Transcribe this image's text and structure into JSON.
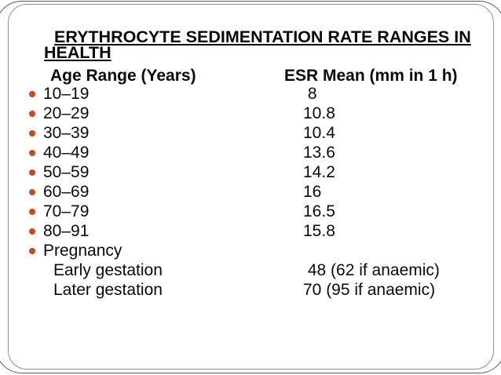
{
  "slide": {
    "title_line1": "ERYTHROCYTE SEDIMENTATION RATE RANGES IN",
    "title_line2": "HEALTH",
    "columns": {
      "age_header": "Age Range (Years)",
      "esr_header": "ESR Mean (mm in 1 h)"
    },
    "rows": [
      {
        "age": "10–19",
        "esr": " 8"
      },
      {
        "age": "20–29",
        "esr": "10.8"
      },
      {
        "age": "30–39",
        "esr": "10.4"
      },
      {
        "age": "40–49",
        "esr": "13.6"
      },
      {
        "age": "50–59",
        "esr": "14.2"
      },
      {
        "age": "60–69",
        "esr": "16"
      },
      {
        "age": "70–79",
        "esr": "16.5"
      },
      {
        "age": "80–91",
        "esr": "15.8"
      },
      {
        "age": "Pregnancy",
        "esr": ""
      }
    ],
    "sub_rows": [
      {
        "label": "Early gestation",
        "esr": " 48 (62 if anaemic)"
      },
      {
        "label": "Later gestation",
        "esr": "70 (95 if anaemic)"
      }
    ],
    "colors": {
      "bullet": "#c8491c",
      "frame": "#929292",
      "outer_line": "#5a5a5a",
      "text": "#0a0a0a"
    }
  }
}
